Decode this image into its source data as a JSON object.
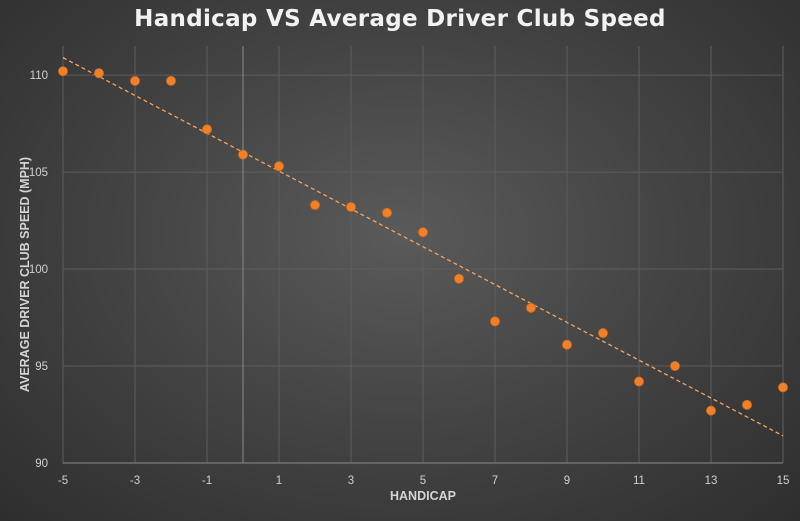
{
  "chart_data": {
    "type": "scatter",
    "title": "Handicap VS Average Driver Club Speed",
    "xlabel": "HANDICAP",
    "ylabel": "AVERAGE DRIVER CLUB SPEED (MPH)",
    "xlim": [
      -5,
      15
    ],
    "ylim": [
      90,
      111.5
    ],
    "x_ticks": [
      "-5",
      "-3",
      "-1",
      "1",
      "3",
      "5",
      "7",
      "9",
      "11",
      "13",
      "15"
    ],
    "x_tick_values": [
      -5,
      -3,
      -1,
      1,
      3,
      5,
      7,
      9,
      11,
      13,
      15
    ],
    "y_ticks": [
      "90",
      "95",
      "100",
      "105",
      "110"
    ],
    "y_tick_values": [
      90,
      95,
      100,
      105,
      110
    ],
    "grid": true,
    "series": [
      {
        "name": "Average Driver Club Speed",
        "color": "#f0812a",
        "x": [
          -5,
          -4,
          -3,
          -2,
          -1,
          0,
          1,
          2,
          3,
          4,
          5,
          6,
          7,
          8,
          9,
          10,
          11,
          12,
          13,
          14,
          15
        ],
        "y": [
          110.2,
          110.1,
          109.7,
          109.7,
          107.2,
          105.9,
          105.3,
          103.3,
          103.2,
          102.9,
          101.9,
          99.5,
          97.3,
          98.0,
          96.1,
          96.7,
          94.2,
          95.0,
          92.7,
          93.0,
          93.9
        ]
      }
    ],
    "trendline": {
      "type": "linear",
      "style": "dashed",
      "color": "#f4a460",
      "x": [
        -5,
        15
      ],
      "y": [
        110.9,
        91.4
      ]
    }
  }
}
